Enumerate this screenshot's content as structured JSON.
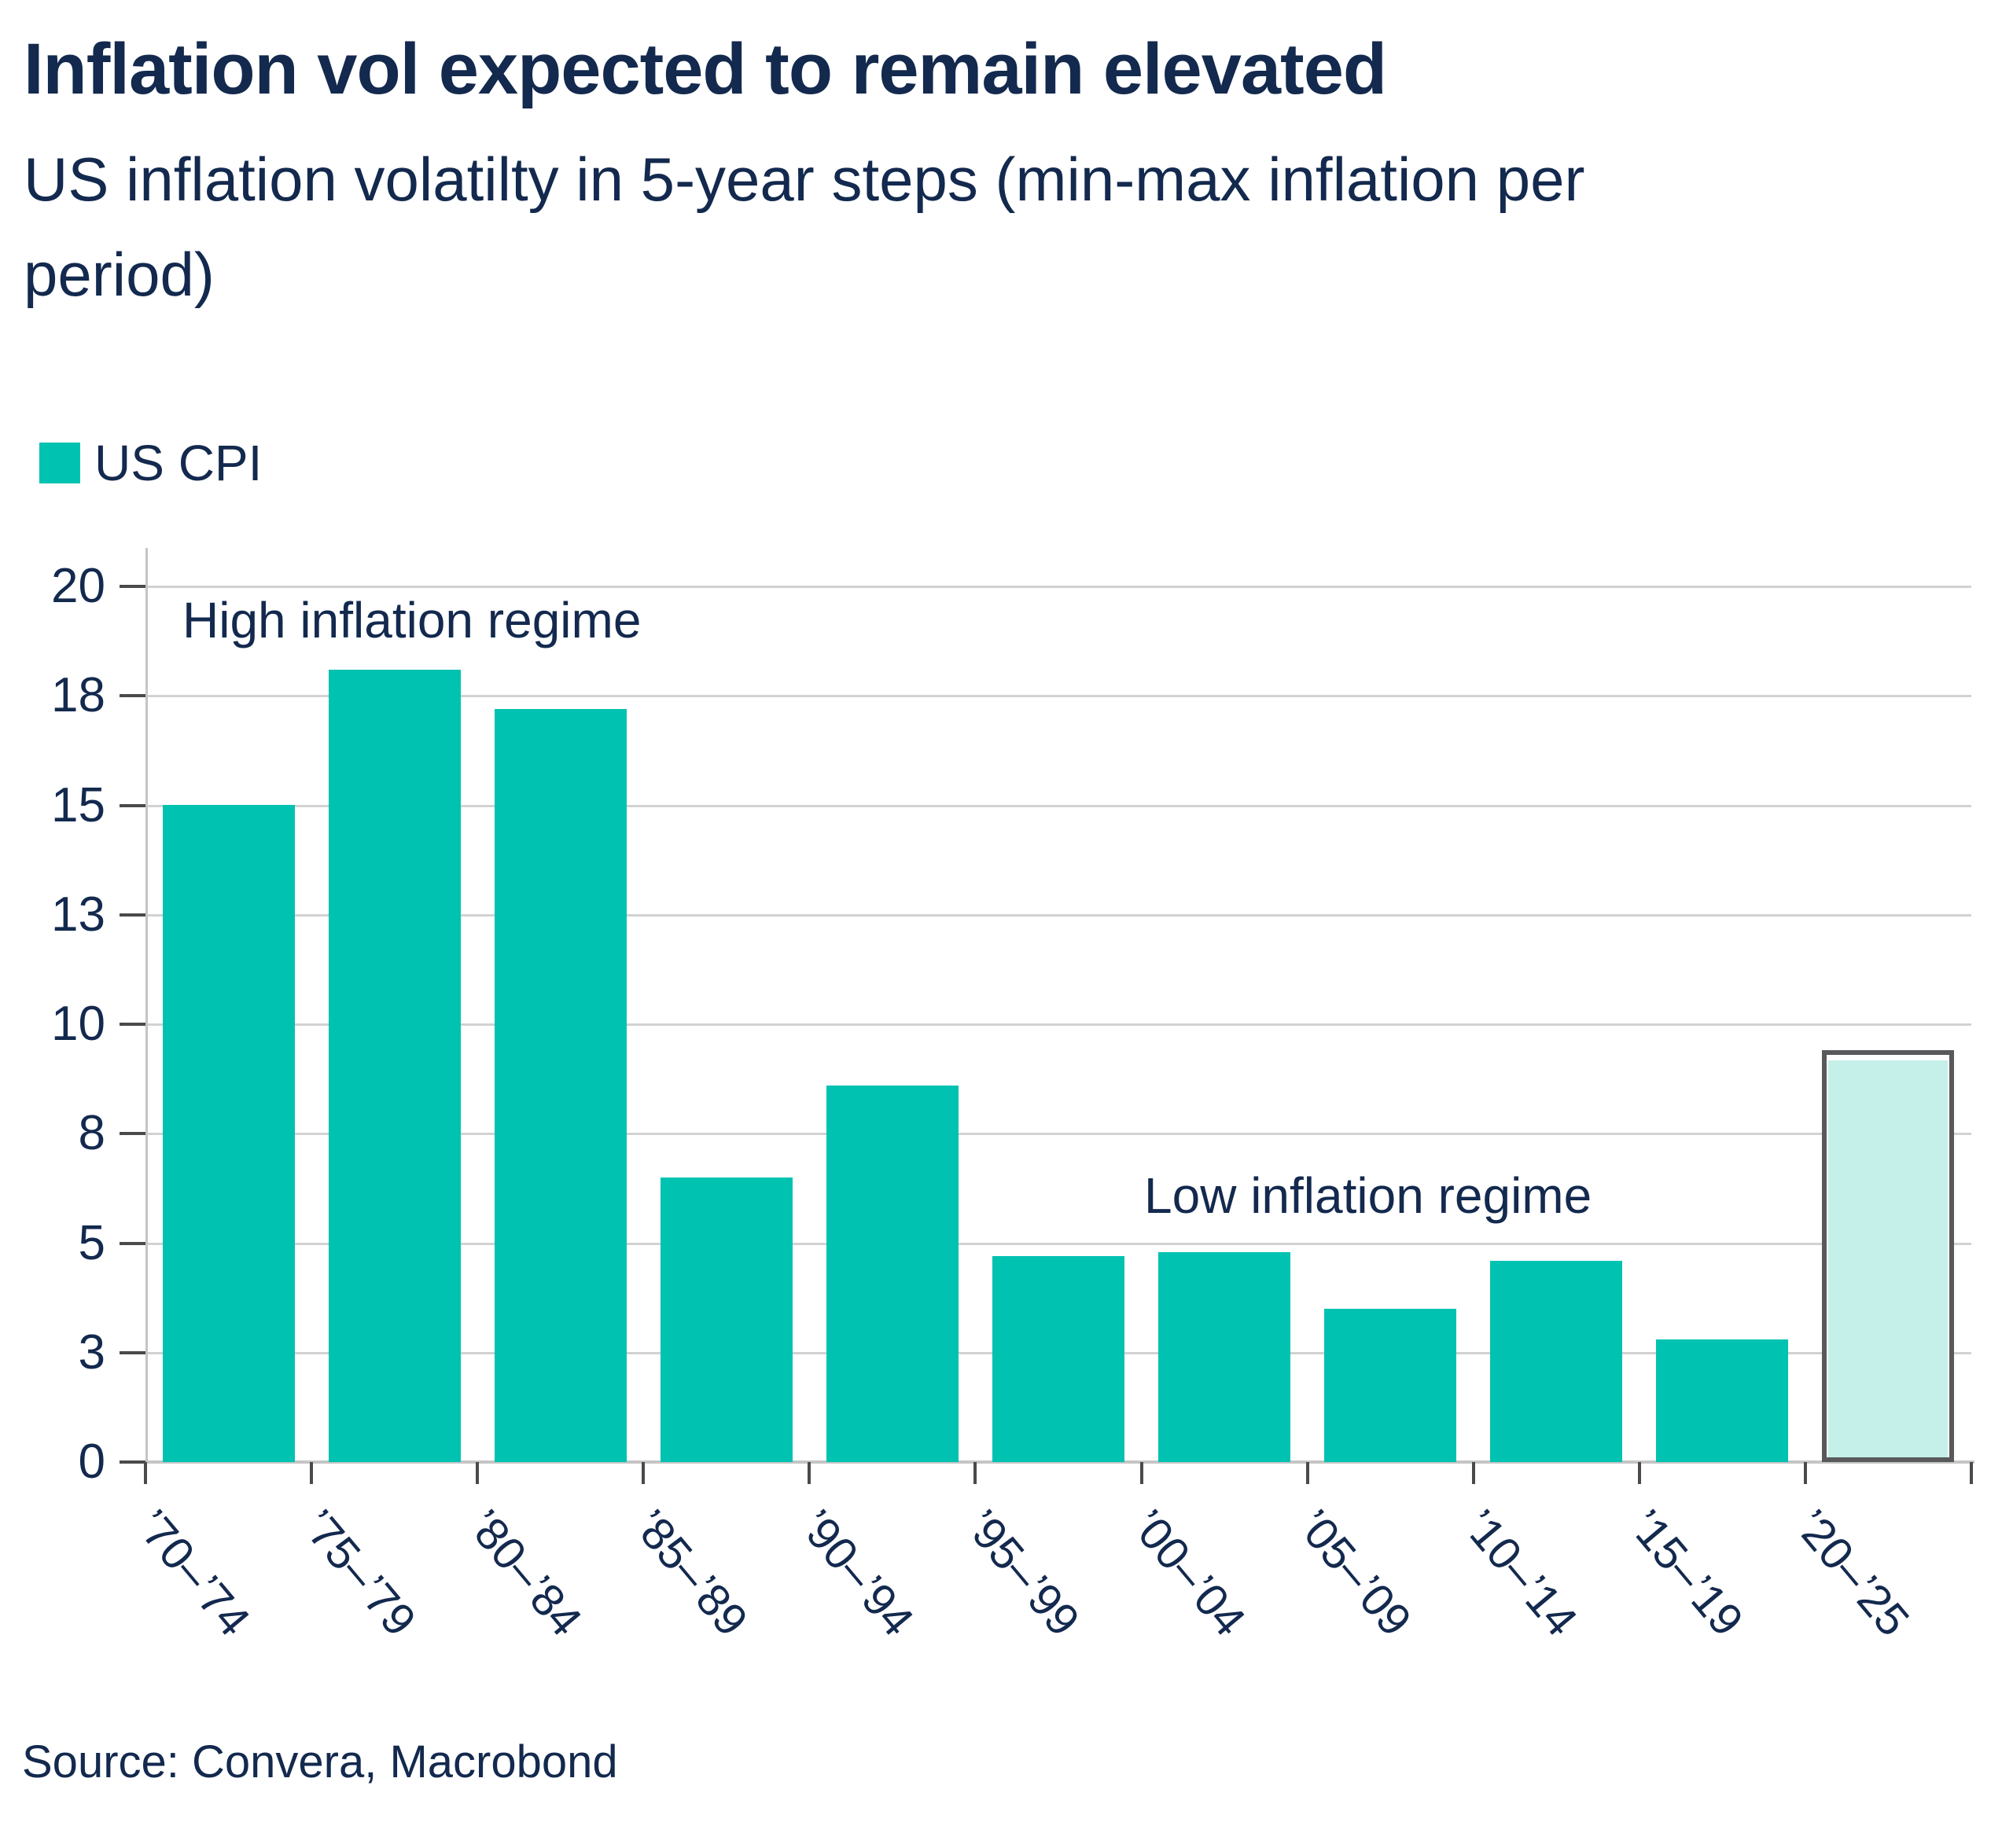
{
  "header": {
    "title": "Inflation vol expected to remain elevated",
    "subtitle": "US inflation volatilty in 5-year steps (min-max inflation per period)"
  },
  "legend": {
    "label": "US CPI"
  },
  "source": "Source: Convera, Macrobond",
  "colors": {
    "navy": "#13294E",
    "teal": "#00C2B1",
    "forecast_fill": "#C5EFE9",
    "forecast_border": "#59595B",
    "gridline": "#D2D2D2",
    "axis_line": "#C5C5C5",
    "tick_mark": "#4A4A4A"
  },
  "chart_data": {
    "type": "bar",
    "title": "Inflation vol expected to remain elevated",
    "subtitle": "US inflation volatilty in 5-year steps (min-max inflation per period)",
    "series_name": "US CPI",
    "categories": [
      "’70–’74",
      "’75–’79",
      "’80–’84",
      "’85–’89",
      "’90–’94",
      "’95–’99",
      "’00–’04",
      "’05–’09",
      "’10–’14",
      "’15–’19",
      "’20–’25"
    ],
    "values": [
      15.0,
      18.1,
      17.2,
      6.5,
      8.6,
      4.7,
      4.8,
      3.5,
      4.6,
      2.8,
      9.4
    ],
    "highlight_last": true,
    "highlight_note": "last bar ('20-'25) drawn as outlined pale bar",
    "yticks": [
      {
        "label": "20",
        "value": 20
      },
      {
        "label": "18",
        "value": 17.5
      },
      {
        "label": "15",
        "value": 15
      },
      {
        "label": "13",
        "value": 12.5
      },
      {
        "label": "10",
        "value": 10
      },
      {
        "label": "8",
        "value": 7.5
      },
      {
        "label": "5",
        "value": 5
      },
      {
        "label": "3",
        "value": 2.5
      },
      {
        "label": "0",
        "value": 0
      }
    ],
    "ylim": [
      0,
      20.9
    ],
    "xlabel": "",
    "ylabel": "",
    "grid": "horizontal",
    "legend_position": "top-left",
    "annotations": [
      {
        "text": "High inflation regime",
        "position": "upper-left"
      },
      {
        "text": "Low inflation regime",
        "position": "middle-right"
      }
    ]
  }
}
